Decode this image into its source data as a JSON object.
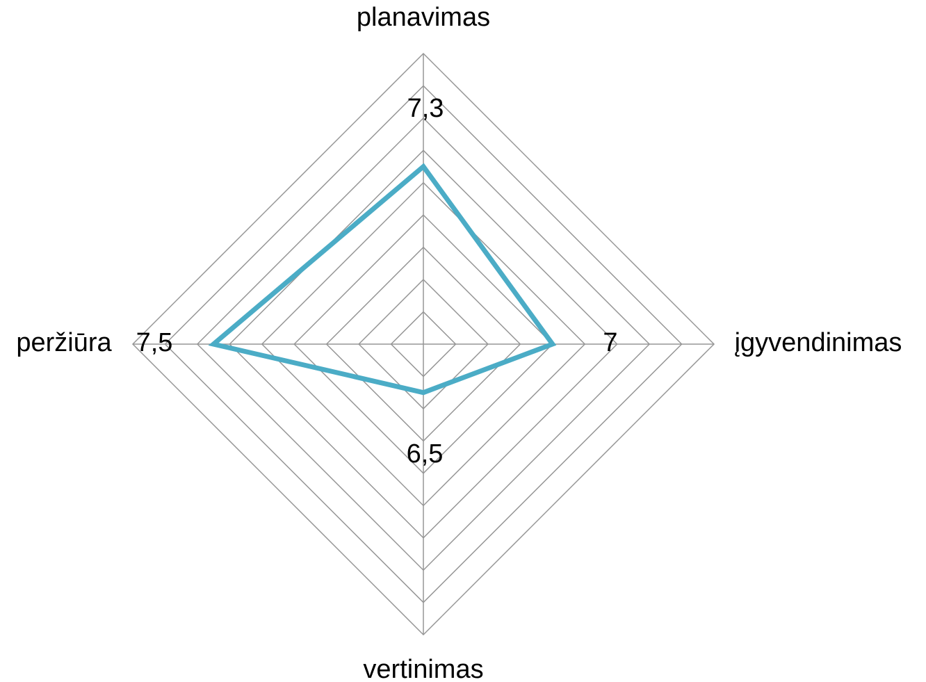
{
  "chart_data": {
    "type": "radar",
    "categories": [
      "planavimas",
      "įgyvendinimas",
      "vertinimas",
      "peržiūra"
    ],
    "series": [
      {
        "name": null,
        "color": "#4bacc6",
        "values": [
          7.3,
          7,
          6.5,
          7.5
        ],
        "value_labels": [
          "7,3",
          "7",
          "6,5",
          "7,5"
        ]
      }
    ],
    "rlim": [
      6.2,
      8.0
    ],
    "rticks": [
      6.2,
      6.4,
      6.6,
      6.8,
      7.0,
      7.2,
      7.4,
      7.6,
      7.8,
      8.0
    ],
    "grid": true
  }
}
